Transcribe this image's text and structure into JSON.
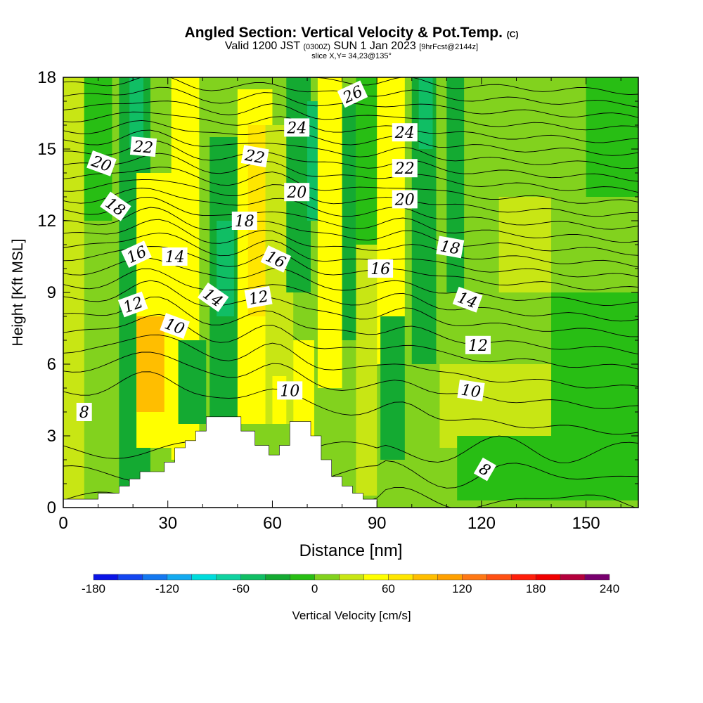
{
  "title": {
    "main": "Angled Section: Vertical Velocity & Pot.Temp.",
    "main_suffix": "(C)",
    "valid_prefix": "Valid 1200 JST",
    "valid_utc": "(0300Z)",
    "valid_date": "SUN 1 Jan 2023",
    "forecast": "[9hrFcst@2144z]",
    "slice": "slice X,Y= 34,23@135°"
  },
  "chart_data": {
    "type": "heatmap",
    "xlabel": "Distance [nm]",
    "ylabel": "Height [Kft MSL]",
    "xlim": [
      0,
      165
    ],
    "ylim": [
      0,
      18
    ],
    "x_ticks": [
      0,
      30,
      60,
      90,
      120,
      150
    ],
    "y_ticks": [
      0,
      3,
      6,
      9,
      12,
      15,
      18
    ],
    "colorbar": {
      "label": "Vertical Velocity [cm/s]",
      "tick_labels": [
        "-180",
        "-120",
        "-60",
        "0",
        "60",
        "120",
        "180",
        "240"
      ],
      "tick_values": [
        -180,
        -120,
        -60,
        0,
        60,
        120,
        180,
        240
      ],
      "bins": [
        {
          "from": -180,
          "to": -160,
          "color": "#0a14e6"
        },
        {
          "from": -160,
          "to": -140,
          "color": "#1446f0"
        },
        {
          "from": -140,
          "to": -120,
          "color": "#1478f0"
        },
        {
          "from": -120,
          "to": -100,
          "color": "#14aaf0"
        },
        {
          "from": -100,
          "to": -80,
          "color": "#00dcdc"
        },
        {
          "from": -80,
          "to": -60,
          "color": "#10d2a0"
        },
        {
          "from": -60,
          "to": -40,
          "color": "#10be64"
        },
        {
          "from": -40,
          "to": -20,
          "color": "#14aa32"
        },
        {
          "from": -20,
          "to": 0,
          "color": "#28be14"
        },
        {
          "from": 0,
          "to": 20,
          "color": "#82d21e"
        },
        {
          "from": 20,
          "to": 40,
          "color": "#c8e614"
        },
        {
          "from": 40,
          "to": 60,
          "color": "#ffff00"
        },
        {
          "from": 60,
          "to": 80,
          "color": "#ffe600"
        },
        {
          "from": 80,
          "to": 100,
          "color": "#ffbe00"
        },
        {
          "from": 100,
          "to": 120,
          "color": "#ffa000"
        },
        {
          "from": 120,
          "to": 140,
          "color": "#ff7814"
        },
        {
          "from": 140,
          "to": 160,
          "color": "#ff5014"
        },
        {
          "from": 160,
          "to": 180,
          "color": "#ff1e0a"
        },
        {
          "from": 180,
          "to": 200,
          "color": "#f00000"
        },
        {
          "from": 200,
          "to": 220,
          "color": "#b4003c"
        },
        {
          "from": 220,
          "to": 240,
          "color": "#78006e"
        }
      ]
    },
    "background_color": "#82d21e",
    "velocity_cells": [
      {
        "x0": 0,
        "x1": 6,
        "y0": 0.3,
        "y1": 18,
        "v": 30
      },
      {
        "x0": 6,
        "x1": 14,
        "y0": 12,
        "y1": 18,
        "v": -10
      },
      {
        "x0": 16,
        "x1": 25,
        "y0": 0.5,
        "y1": 18,
        "v": -30
      },
      {
        "x0": 19,
        "x1": 23,
        "y0": 15,
        "y1": 18,
        "v": -50
      },
      {
        "x0": 21,
        "x1": 33,
        "y0": 2.5,
        "y1": 14,
        "v": 50
      },
      {
        "x0": 21,
        "x1": 29,
        "y0": 4,
        "y1": 8,
        "v": 80
      },
      {
        "x0": 31,
        "x1": 39,
        "y0": 2,
        "y1": 18,
        "v": 50
      },
      {
        "x0": 33,
        "x1": 41,
        "y0": 3.5,
        "y1": 7,
        "v": -30
      },
      {
        "x0": 42,
        "x1": 50,
        "y0": 3.5,
        "y1": 15.5,
        "v": -40
      },
      {
        "x0": 44,
        "x1": 49,
        "y0": 8,
        "y1": 12,
        "v": -60
      },
      {
        "x0": 50,
        "x1": 60,
        "y0": 3.5,
        "y1": 17.5,
        "v": 50
      },
      {
        "x0": 53,
        "x1": 59,
        "y0": 8,
        "y1": 16,
        "v": 70
      },
      {
        "x0": 58,
        "x1": 66,
        "y0": 3.5,
        "y1": 16,
        "v": 20
      },
      {
        "x0": 60,
        "x1": 64,
        "y0": 3.5,
        "y1": 5.5,
        "v": 50
      },
      {
        "x0": 64,
        "x1": 71,
        "y0": 9,
        "y1": 18,
        "v": -30
      },
      {
        "x0": 66,
        "x1": 72,
        "y0": 3,
        "y1": 7,
        "v": 50
      },
      {
        "x0": 70,
        "x1": 73,
        "y0": 12,
        "y1": 17,
        "v": -50
      },
      {
        "x0": 73,
        "x1": 80,
        "y0": 5,
        "y1": 18,
        "v": 50
      },
      {
        "x0": 80,
        "x1": 84,
        "y0": 7,
        "y1": 17,
        "v": -30
      },
      {
        "x0": 84,
        "x1": 90,
        "y0": 0.5,
        "y1": 18,
        "v": 20
      },
      {
        "x0": 84,
        "x1": 91,
        "y0": 11,
        "y1": 18,
        "v": -10
      },
      {
        "x0": 90,
        "x1": 98,
        "y0": 6,
        "y1": 18,
        "v": 50
      },
      {
        "x0": 91,
        "x1": 98,
        "y0": 2,
        "y1": 8,
        "v": -30
      },
      {
        "x0": 100,
        "x1": 107,
        "y0": 6,
        "y1": 18,
        "v": -30
      },
      {
        "x0": 102,
        "x1": 106,
        "y0": 15,
        "y1": 18,
        "v": -50
      },
      {
        "x0": 108,
        "x1": 165,
        "y0": 2.5,
        "y1": 6,
        "v": 20
      },
      {
        "x0": 110,
        "x1": 115,
        "y0": 9,
        "y1": 18,
        "v": -30
      },
      {
        "x0": 113,
        "x1": 165,
        "y0": 0.3,
        "y1": 3,
        "v": -10
      },
      {
        "x0": 125,
        "x1": 140,
        "y0": 9,
        "y1": 13,
        "v": 30
      },
      {
        "x0": 140,
        "x1": 165,
        "y0": 3,
        "y1": 9,
        "v": -10
      },
      {
        "x0": 150,
        "x1": 165,
        "y0": 13,
        "y1": 18,
        "v": -10
      }
    ],
    "terrain": [
      [
        0,
        0.35
      ],
      [
        10,
        0.35
      ],
      [
        10,
        0.6
      ],
      [
        16,
        0.6
      ],
      [
        16,
        0.9
      ],
      [
        19,
        0.9
      ],
      [
        19,
        1.2
      ],
      [
        22,
        1.2
      ],
      [
        22,
        1.5
      ],
      [
        29,
        1.5
      ],
      [
        29,
        1.9
      ],
      [
        32,
        1.9
      ],
      [
        32,
        2.5
      ],
      [
        35,
        2.5
      ],
      [
        35,
        2.8
      ],
      [
        38,
        2.8
      ],
      [
        38,
        3.2
      ],
      [
        41,
        3.2
      ],
      [
        41,
        3.8
      ],
      [
        51,
        3.8
      ],
      [
        51,
        3.2
      ],
      [
        55,
        3.2
      ],
      [
        55,
        2.6
      ],
      [
        59,
        2.6
      ],
      [
        59,
        2.2
      ],
      [
        62,
        2.2
      ],
      [
        62,
        2.6
      ],
      [
        65,
        2.6
      ],
      [
        65,
        3.6
      ],
      [
        71,
        3.6
      ],
      [
        71,
        3.0
      ],
      [
        74,
        3.0
      ],
      [
        74,
        2.0
      ],
      [
        77,
        2.0
      ],
      [
        77,
        1.3
      ],
      [
        80,
        1.3
      ],
      [
        80,
        0.9
      ],
      [
        83,
        0.9
      ],
      [
        83,
        0.6
      ],
      [
        86,
        0.6
      ],
      [
        86,
        0.35
      ],
      [
        90,
        0.35
      ]
    ],
    "isentropes": [
      {
        "value": "8",
        "shape": "low",
        "base": 0.3
      },
      {
        "value": "8",
        "shape": "low",
        "base": 1.4
      },
      {
        "value": "8",
        "shape": "low",
        "base": 2.4
      },
      {
        "value": "8",
        "shape": "hump",
        "base": 4.0
      },
      {
        "value": "9",
        "shape": "hump",
        "base": 5.0
      },
      {
        "value": "10",
        "shape": "hump",
        "base": 5.8
      },
      {
        "value": "10",
        "shape": "hump",
        "base": 6.6
      },
      {
        "value": "11",
        "shape": "hump",
        "base": 7.3
      },
      {
        "value": "12",
        "shape": "hump",
        "base": 8.0
      },
      {
        "value": "12",
        "shape": "hump",
        "base": 8.6
      },
      {
        "value": "13",
        "shape": "hump",
        "base": 9.2
      },
      {
        "value": "14",
        "shape": "hump",
        "base": 9.8
      },
      {
        "value": "14",
        "shape": "hump",
        "base": 10.3
      },
      {
        "value": "15",
        "shape": "hump",
        "base": 10.8
      },
      {
        "value": "16",
        "shape": "hump",
        "base": 11.3
      },
      {
        "value": "16",
        "shape": "hump",
        "base": 11.8
      },
      {
        "value": "17",
        "shape": "hump",
        "base": 12.3
      },
      {
        "value": "18",
        "shape": "hump",
        "base": 12.8
      },
      {
        "value": "18",
        "shape": "hump",
        "base": 13.3
      },
      {
        "value": "19",
        "shape": "hump",
        "base": 13.8
      },
      {
        "value": "20",
        "shape": "hump",
        "base": 14.3
      },
      {
        "value": "20",
        "shape": "hump",
        "base": 14.8
      },
      {
        "value": "21",
        "shape": "hump",
        "base": 15.3
      },
      {
        "value": "22",
        "shape": "hump",
        "base": 15.8
      },
      {
        "value": "22",
        "shape": "hump",
        "base": 16.3
      },
      {
        "value": "23",
        "shape": "hump",
        "base": 16.8
      },
      {
        "value": "24",
        "shape": "hump",
        "base": 17.3
      },
      {
        "value": "24",
        "shape": "hump",
        "base": 17.8
      }
    ],
    "contour_labels": [
      {
        "text": "8",
        "x": 6,
        "y": 4.0,
        "angle": 0
      },
      {
        "text": "8",
        "x": 121,
        "y": 1.6,
        "angle": 30
      },
      {
        "text": "10",
        "x": 32,
        "y": 7.6,
        "angle": 20
      },
      {
        "text": "10",
        "x": 65,
        "y": 4.9,
        "angle": 0
      },
      {
        "text": "10",
        "x": 117,
        "y": 4.9,
        "angle": 8
      },
      {
        "text": "12",
        "x": 20,
        "y": 8.5,
        "angle": -20
      },
      {
        "text": "12",
        "x": 56,
        "y": 8.8,
        "angle": -10
      },
      {
        "text": "12",
        "x": 119,
        "y": 6.8,
        "angle": 0
      },
      {
        "text": "14",
        "x": 32,
        "y": 10.5,
        "angle": 0
      },
      {
        "text": "14",
        "x": 43,
        "y": 8.8,
        "angle": 35
      },
      {
        "text": "14",
        "x": 116,
        "y": 8.7,
        "angle": 20
      },
      {
        "text": "16",
        "x": 21,
        "y": 10.6,
        "angle": -25
      },
      {
        "text": "16",
        "x": 61,
        "y": 10.4,
        "angle": 25
      },
      {
        "text": "16",
        "x": 91,
        "y": 10.0,
        "angle": 0
      },
      {
        "text": "18",
        "x": 15,
        "y": 12.6,
        "angle": 35
      },
      {
        "text": "18",
        "x": 52,
        "y": 12.0,
        "angle": 0
      },
      {
        "text": "18",
        "x": 111,
        "y": 10.9,
        "angle": 10
      },
      {
        "text": "20",
        "x": 11,
        "y": 14.4,
        "angle": 20
      },
      {
        "text": "20",
        "x": 67,
        "y": 13.2,
        "angle": 0
      },
      {
        "text": "20",
        "x": 98,
        "y": 12.9,
        "angle": 0
      },
      {
        "text": "22",
        "x": 23,
        "y": 15.1,
        "angle": 5
      },
      {
        "text": "22",
        "x": 55,
        "y": 14.7,
        "angle": 10
      },
      {
        "text": "22",
        "x": 98,
        "y": 14.2,
        "angle": 0
      },
      {
        "text": "24",
        "x": 67,
        "y": 15.9,
        "angle": 0
      },
      {
        "text": "24",
        "x": 98,
        "y": 15.7,
        "angle": 0
      },
      {
        "text": "26",
        "x": 83,
        "y": 17.3,
        "angle": -25
      }
    ]
  }
}
